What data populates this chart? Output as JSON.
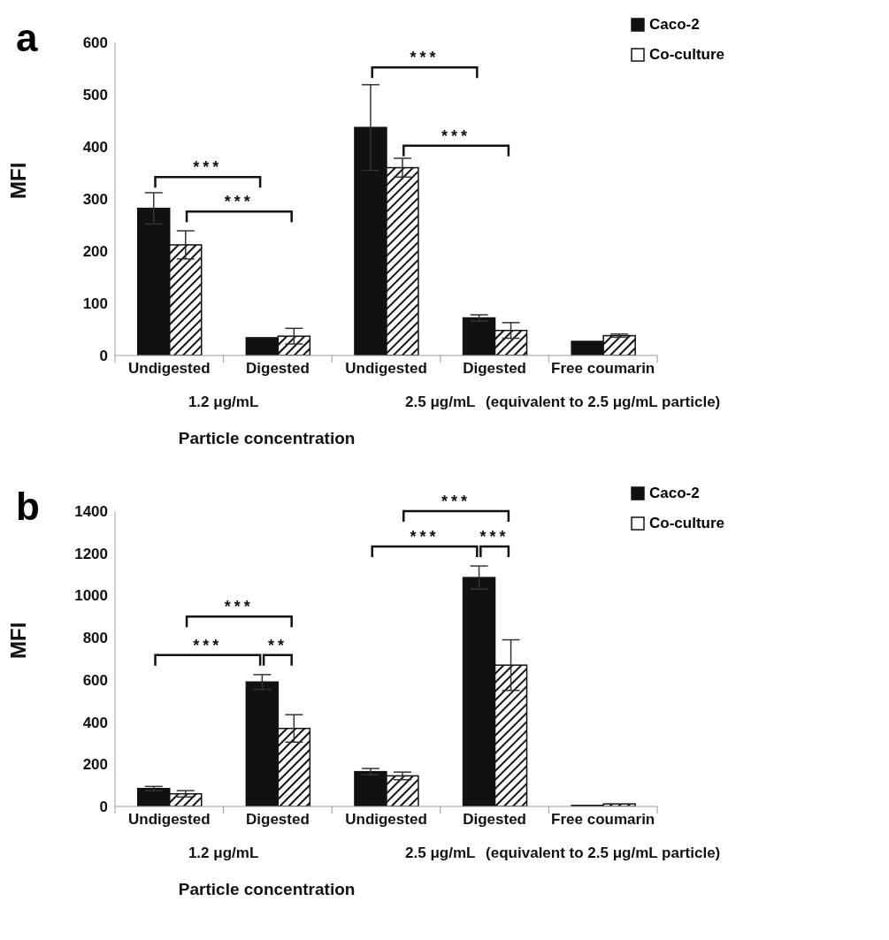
{
  "chart_data": [
    {
      "type": "bar",
      "title": "a",
      "xlabel": "Particle concentration",
      "ylabel": "MFI",
      "categories": [
        "Undigested",
        "Digested",
        "Undigested",
        "Digested",
        "Free coumarin"
      ],
      "series": [
        {
          "name": "Caco-2",
          "color": "#111111",
          "values": [
            282,
            34,
            437,
            72,
            27
          ],
          "errors": [
            30,
            null,
            82,
            6,
            null
          ]
        },
        {
          "name": "Co-culture",
          "color": "#ffffff",
          "values": [
            212,
            37,
            360,
            48,
            38
          ],
          "errors": [
            27,
            15,
            18,
            15,
            3
          ]
        }
      ],
      "ylim": [
        0,
        600
      ],
      "yticks": [
        0,
        100,
        200,
        300,
        400,
        500,
        600
      ],
      "grid": false,
      "legend": "top right",
      "annotations": [
        "***",
        "***",
        "***",
        "***",
        "1.2 μg/mL",
        "2.5 μg/mL",
        "(equivalent to 2.5 μg/mL particle)"
      ]
    },
    {
      "type": "bar",
      "title": "b",
      "xlabel": "Particle concentration",
      "ylabel": "MFI",
      "categories": [
        "Undigested",
        "Digested",
        "Undigested",
        "Digested",
        "Free coumarin"
      ],
      "series": [
        {
          "name": "Caco-2",
          "color": "#111111",
          "values": [
            85,
            590,
            165,
            1085,
            5
          ],
          "errors": [
            10,
            35,
            15,
            55,
            null
          ]
        },
        {
          "name": "Co-culture",
          "color": "#ffffff",
          "values": [
            60,
            370,
            145,
            670,
            12
          ],
          "errors": [
            15,
            65,
            18,
            120,
            null
          ]
        }
      ],
      "ylim": [
        0,
        1400
      ],
      "yticks": [
        0,
        200,
        400,
        600,
        800,
        1000,
        1200,
        1400
      ],
      "grid": false,
      "legend": "top right",
      "annotations": [
        "***",
        "**",
        "***",
        "***",
        "***",
        "***",
        "1.2 μg/mL",
        "2.5 μg/mL",
        "(equivalent to 2.5 μg/mL particle)"
      ]
    }
  ]
}
